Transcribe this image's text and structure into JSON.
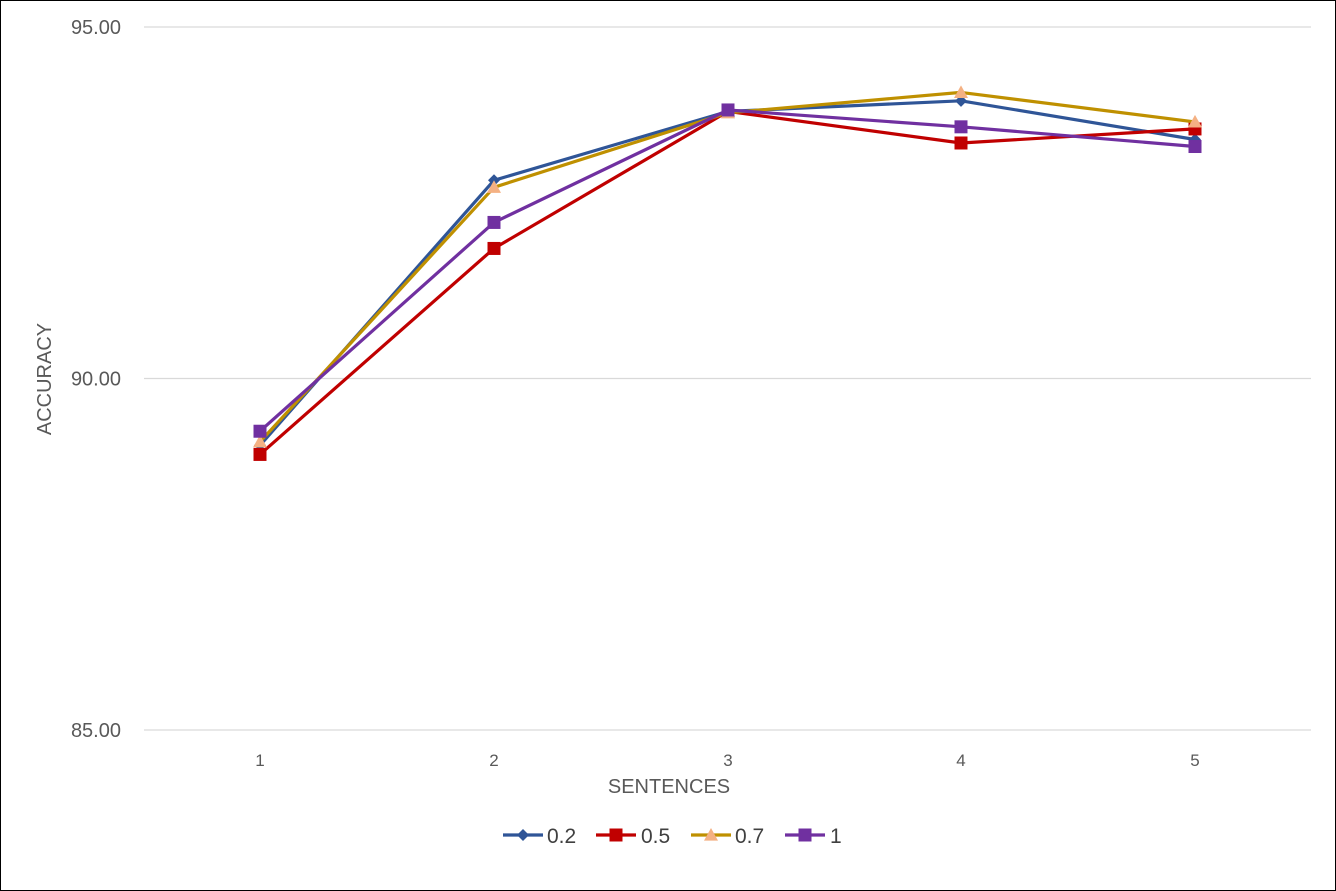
{
  "chart_data": {
    "type": "line",
    "title": "",
    "xlabel": "SENTENCES",
    "ylabel": "ACCURACY",
    "categories": [
      "1",
      "2",
      "3",
      "4",
      "5"
    ],
    "y_ticks": [
      "85.00",
      "90.00",
      "95.00"
    ],
    "ylim": [
      85,
      95
    ],
    "grid": true,
    "legend_position": "bottom",
    "series": [
      {
        "name": "0.2",
        "color": "#2F5597",
        "marker": "diamond",
        "values": [
          89.05,
          92.82,
          93.8,
          93.95,
          93.4
        ]
      },
      {
        "name": "0.5",
        "color": "#C00000",
        "marker": "square",
        "values": [
          88.92,
          91.85,
          93.8,
          93.35,
          93.55
        ]
      },
      {
        "name": "0.7",
        "color": "#BF9000",
        "marker": "triangle",
        "values": [
          89.1,
          92.72,
          93.78,
          94.07,
          93.65
        ]
      },
      {
        "name": "1",
        "color": "#7030A0",
        "marker": "square",
        "values": [
          89.25,
          92.22,
          93.82,
          93.58,
          93.3
        ]
      }
    ],
    "marker_fill_override": {
      "0.7": "#F4B183"
    }
  }
}
